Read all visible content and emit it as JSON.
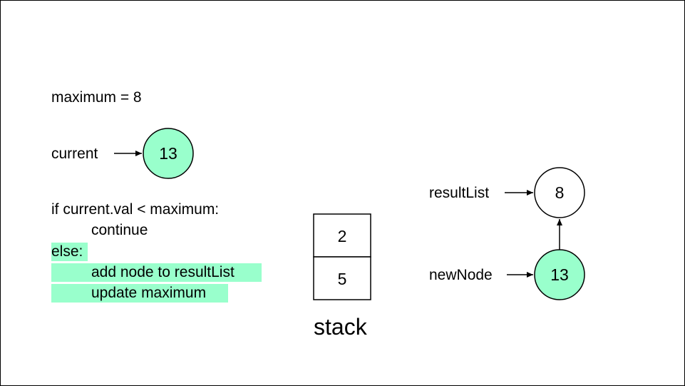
{
  "maximum_line": "maximum = 8",
  "current": {
    "label": "current",
    "node_value": "13"
  },
  "code": {
    "line1": "if current.val < maximum:",
    "line2": "continue",
    "line3": "else:",
    "line4": "add node to resultList",
    "line5": "update maximum"
  },
  "stack": {
    "top": "2",
    "bottom": "5",
    "label": "stack"
  },
  "result_list": {
    "label": "resultList",
    "node_value": "8"
  },
  "new_node": {
    "label": "newNode",
    "node_value": "13"
  },
  "colors": {
    "highlight": "#99ffcc",
    "node_fill": "#99ffcc",
    "stroke": "#000000"
  }
}
